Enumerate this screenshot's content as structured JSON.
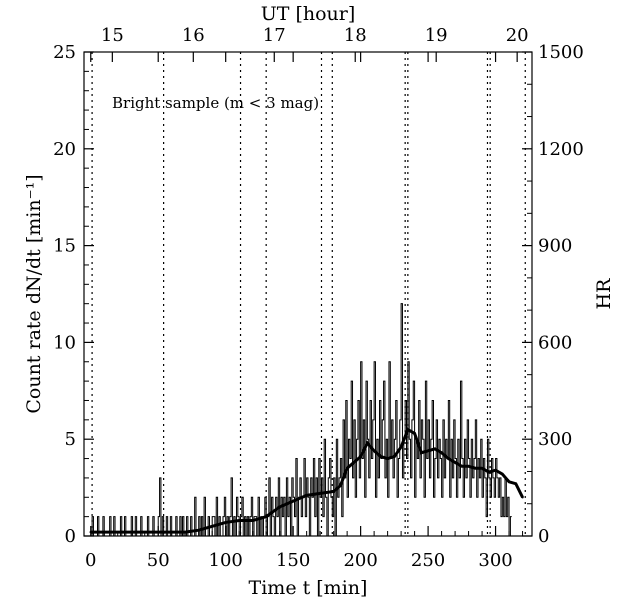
{
  "chart_data": {
    "type": "line",
    "xlabel": "Time t [min]",
    "ylabel": "Count rate dN/dt [min⁻¹]",
    "y2label": "HR",
    "top_axis_label": "UT [hour]",
    "annotation": "Bright sample (m < 3 mag)",
    "xlim": [
      -5,
      327
    ],
    "ylim": [
      0,
      25
    ],
    "y2lim": [
      0,
      1500
    ],
    "x_ticks": [
      0,
      50,
      100,
      150,
      200,
      250,
      300
    ],
    "y_ticks": [
      0,
      5,
      10,
      15,
      20,
      25
    ],
    "y2_ticks": [
      0,
      300,
      600,
      900,
      1200,
      1500
    ],
    "top_ticks": [
      {
        "label": "15",
        "t": 16
      },
      {
        "label": "16",
        "t": 76
      },
      {
        "label": "17",
        "t": 136
      },
      {
        "label": "18",
        "t": 196
      },
      {
        "label": "19",
        "t": 256
      },
      {
        "label": "20",
        "t": 316
      }
    ],
    "vertical_dotted_lines_t": [
      1,
      54,
      111,
      130,
      171,
      179,
      233,
      235,
      294,
      296,
      322
    ],
    "series": [
      {
        "style": "histogram",
        "t_start": 0,
        "bin_width": 1,
        "values": [
          0,
          1,
          0,
          0,
          0,
          1,
          0,
          0,
          0,
          1,
          0,
          0,
          0,
          0,
          1,
          0,
          0,
          1,
          0,
          0,
          0,
          0,
          1,
          0,
          0,
          1,
          0,
          0,
          0,
          0,
          1,
          0,
          0,
          1,
          0,
          0,
          0,
          1,
          0,
          0,
          0,
          0,
          1,
          0,
          0,
          0,
          1,
          0,
          0,
          0,
          1,
          3,
          0,
          1,
          0,
          0,
          1,
          0,
          0,
          1,
          0,
          0,
          0,
          1,
          0,
          0,
          1,
          0,
          1,
          0,
          0,
          1,
          0,
          0,
          1,
          0,
          0,
          2,
          0,
          0,
          1,
          0,
          1,
          0,
          2,
          0,
          0,
          1,
          0,
          0,
          1,
          1,
          0,
          2,
          0,
          1,
          0,
          0,
          1,
          2,
          0,
          1,
          0,
          1,
          3,
          0,
          1,
          0,
          2,
          1,
          0,
          1,
          2,
          0,
          1,
          0,
          1,
          0,
          1,
          2,
          0,
          1,
          1,
          0,
          2,
          0,
          1,
          0,
          1,
          2,
          0,
          1,
          3,
          0,
          2,
          1,
          0,
          2,
          1,
          3,
          0,
          2,
          1,
          2,
          0,
          3,
          1,
          2,
          0,
          3,
          2,
          1,
          4,
          0,
          2,
          3,
          1,
          2,
          4,
          1,
          3,
          2,
          0,
          3,
          2,
          4,
          1,
          3,
          0,
          4,
          2,
          3,
          1,
          5,
          2,
          0,
          3,
          4,
          2,
          1,
          3,
          0,
          5,
          2,
          3,
          4,
          1,
          6,
          3,
          7,
          2,
          5,
          4,
          8,
          3,
          6,
          2,
          5,
          7,
          3,
          9,
          4,
          6,
          2,
          8,
          5,
          3,
          7,
          4,
          6,
          9,
          2,
          5,
          3,
          7,
          4,
          6,
          8,
          3,
          5,
          2,
          9,
          4,
          6,
          3,
          5,
          7,
          2,
          4,
          6,
          12,
          3,
          5,
          7,
          4,
          9,
          5,
          3,
          6,
          8,
          2,
          5,
          4,
          7,
          3,
          6,
          5,
          2,
          8,
          4,
          6,
          3,
          5,
          7,
          2,
          4,
          6,
          3,
          5,
          4,
          2,
          6,
          3,
          5,
          4,
          7,
          2,
          5,
          3,
          6,
          4,
          2,
          5,
          3,
          8,
          4,
          2,
          5,
          3,
          6,
          4,
          2,
          5,
          3,
          4,
          6,
          2,
          4,
          3,
          5,
          2,
          4,
          3,
          1,
          5,
          3,
          2,
          4,
          3,
          2,
          4,
          3,
          2,
          3,
          1,
          2,
          1,
          3,
          1,
          2,
          0,
          1
        ]
      },
      {
        "style": "smoothed",
        "x": [
          0,
          10,
          20,
          30,
          40,
          50,
          60,
          70,
          80,
          90,
          100,
          110,
          120,
          130,
          140,
          150,
          160,
          170,
          180,
          185,
          190,
          195,
          200,
          205,
          210,
          215,
          220,
          225,
          230,
          235,
          240,
          245,
          250,
          255,
          260,
          265,
          270,
          275,
          280,
          285,
          290,
          295,
          300,
          305,
          310,
          315,
          320
        ],
        "y": [
          0.2,
          0.2,
          0.2,
          0.2,
          0.2,
          0.2,
          0.2,
          0.2,
          0.3,
          0.5,
          0.7,
          0.8,
          0.8,
          1.0,
          1.5,
          1.8,
          2.1,
          2.2,
          2.3,
          2.6,
          3.5,
          3.8,
          4.1,
          4.8,
          4.4,
          4.1,
          4.0,
          4.1,
          4.6,
          5.5,
          5.3,
          4.3,
          4.4,
          4.5,
          4.3,
          4.0,
          3.8,
          3.6,
          3.6,
          3.5,
          3.5,
          3.3,
          3.4,
          3.2,
          2.8,
          2.7,
          2.0
        ]
      }
    ]
  }
}
